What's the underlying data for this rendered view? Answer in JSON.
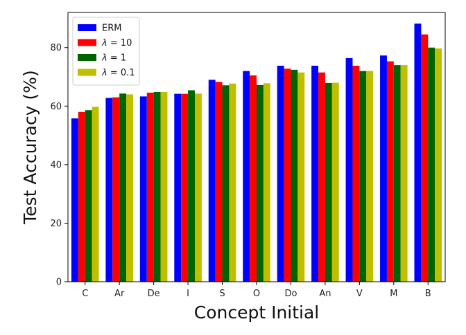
{
  "chart_data": {
    "type": "bar",
    "title": "",
    "xlabel": "Concept Initial",
    "ylabel": "Test Accuracy (%)",
    "ylim": [
      0,
      92
    ],
    "yticks": [
      0,
      20,
      40,
      60,
      80
    ],
    "grid": false,
    "legend_position": "top-left",
    "categories": [
      "C",
      "Ar",
      "De",
      "I",
      "S",
      "O",
      "Do",
      "An",
      "V",
      "M",
      "B"
    ],
    "series": [
      {
        "name": "ERM",
        "name_symbol": "",
        "name_rest": "ERM",
        "color": "#0000ff",
        "values": [
          55.8,
          62.8,
          63.3,
          64.2,
          69.0,
          72.0,
          73.8,
          73.8,
          76.4,
          77.3,
          88.2
        ]
      },
      {
        "name": "λ = 10",
        "name_symbol": "λ",
        "name_rest": " = 10",
        "color": "#ff0000",
        "values": [
          58.0,
          63.0,
          64.6,
          64.2,
          68.3,
          70.5,
          72.8,
          71.5,
          73.8,
          75.3,
          84.5
        ]
      },
      {
        "name": "λ = 1",
        "name_symbol": "λ",
        "name_rest": " = 1",
        "color": "#006400",
        "values": [
          58.6,
          64.3,
          64.8,
          65.4,
          67.1,
          67.2,
          72.4,
          67.9,
          72.0,
          74.0,
          80.0
        ]
      },
      {
        "name": "λ = 0.1",
        "name_symbol": "λ",
        "name_rest": " = 0.1",
        "color": "#bfbf00",
        "values": [
          59.8,
          64.0,
          64.8,
          64.3,
          67.7,
          67.8,
          71.5,
          68.0,
          72.0,
          74.0,
          79.7
        ]
      }
    ]
  }
}
